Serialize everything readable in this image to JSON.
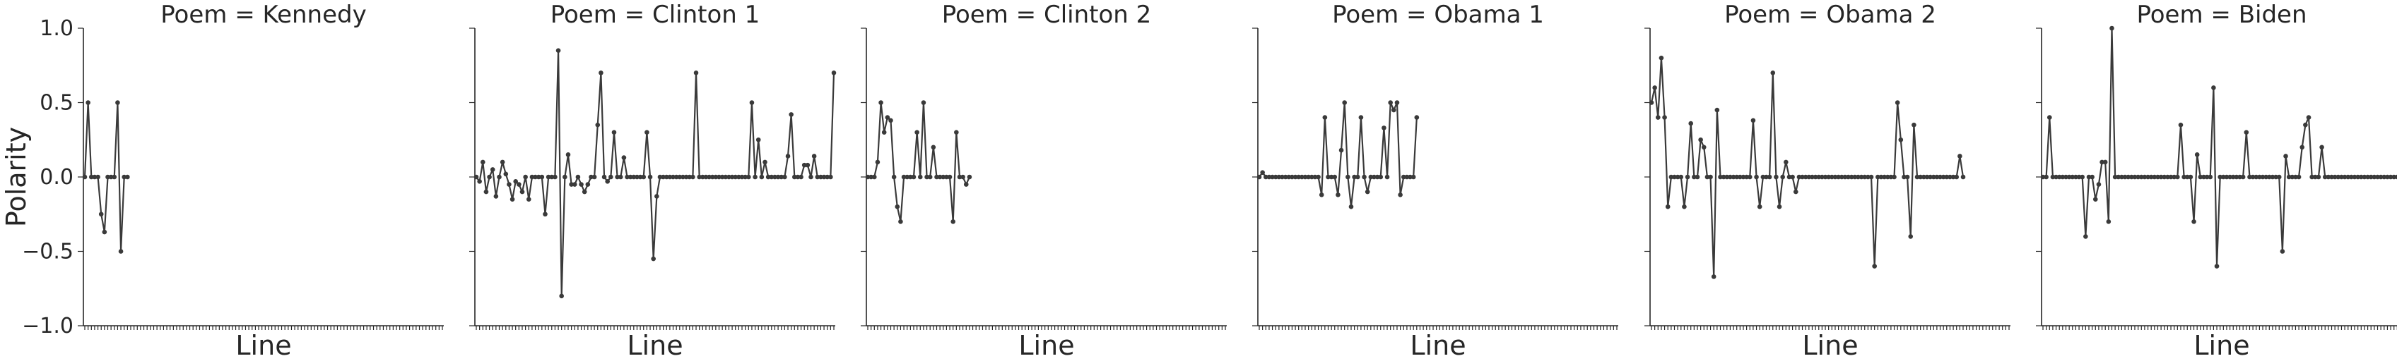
{
  "chart_data": {
    "type": "line",
    "facet_var": "Poem",
    "ylabel": "Polarity",
    "ylim": [
      -1.0,
      1.0
    ],
    "yticks": [
      "1.0",
      "0.5",
      "0.0",
      "−0.5",
      "−1.0"
    ],
    "ytick_values": [
      1.0,
      0.5,
      0.0,
      -0.5,
      -1.0
    ],
    "xlabel": "Line",
    "x_max_lines": 110,
    "grid": false,
    "panels": [
      {
        "title": "Poem = Kennedy",
        "values": [
          0.0,
          0.5,
          0.0,
          0.0,
          0.0,
          -0.25,
          -0.37,
          0.0,
          0.0,
          0.0,
          0.5,
          -0.5,
          0.0,
          0.0
        ]
      },
      {
        "title": "Poem = Clinton 1",
        "values": [
          0.0,
          -0.03,
          0.1,
          -0.1,
          0.0,
          0.05,
          -0.13,
          0.0,
          0.1,
          0.02,
          -0.05,
          -0.15,
          -0.03,
          -0.05,
          -0.1,
          0.0,
          -0.15,
          0.0,
          0.0,
          0.0,
          0.0,
          -0.25,
          0.0,
          0.0,
          0.0,
          0.85,
          -0.8,
          0.0,
          0.15,
          -0.05,
          -0.05,
          0.0,
          -0.05,
          -0.1,
          -0.05,
          0.0,
          0.0,
          0.35,
          0.7,
          0.0,
          -0.03,
          0.0,
          0.3,
          0.0,
          0.0,
          0.13,
          0.0,
          0.0,
          0.0,
          0.0,
          0.0,
          0.0,
          0.3,
          0.0,
          -0.55,
          -0.13,
          0.0,
          0.0,
          0.0,
          0.0,
          0.0,
          0.0,
          0.0,
          0.0,
          0.0,
          0.0,
          0.0,
          0.7,
          0.0,
          0.0,
          0.0,
          0.0,
          0.0,
          0.0,
          0.0,
          0.0,
          0.0,
          0.0,
          0.0,
          0.0,
          0.0,
          0.0,
          0.0,
          0.0,
          0.5,
          0.0,
          0.25,
          0.0,
          0.1,
          0.0,
          0.0,
          0.0,
          0.0,
          0.0,
          0.0,
          0.14,
          0.42,
          0.0,
          0.0,
          0.0,
          0.08,
          0.08,
          0.0,
          0.14,
          0.0,
          0.0,
          0.0,
          0.0,
          0.0,
          0.7
        ]
      },
      {
        "title": "Poem = Clinton 2",
        "values": [
          0.0,
          0.0,
          0.0,
          0.1,
          0.5,
          0.3,
          0.4,
          0.38,
          0.0,
          -0.2,
          -0.3,
          0.0,
          0.0,
          0.0,
          0.0,
          0.3,
          0.0,
          0.5,
          0.0,
          0.0,
          0.2,
          0.0,
          0.0,
          0.0,
          0.0,
          0.0,
          -0.3,
          0.3,
          0.0,
          0.0,
          -0.05,
          0.0
        ]
      },
      {
        "title": "Poem = Obama 1",
        "values": [
          0.0,
          0.03,
          0.0,
          0.0,
          0.0,
          0.0,
          0.0,
          0.0,
          0.0,
          0.0,
          0.0,
          0.0,
          0.0,
          0.0,
          0.0,
          0.0,
          0.0,
          0.0,
          0.0,
          -0.12,
          0.4,
          0.0,
          0.0,
          0.0,
          -0.12,
          0.18,
          0.5,
          0.0,
          -0.2,
          0.0,
          0.0,
          0.4,
          0.0,
          -0.1,
          0.0,
          0.0,
          0.0,
          0.0,
          0.33,
          0.0,
          0.5,
          0.45,
          0.5,
          -0.12,
          0.0,
          0.0,
          0.0,
          0.0,
          0.4
        ]
      },
      {
        "title": "Poem = Obama 2",
        "values": [
          0.5,
          0.6,
          0.4,
          0.8,
          0.4,
          -0.2,
          0.0,
          0.0,
          0.0,
          0.0,
          -0.2,
          0.0,
          0.36,
          0.0,
          0.0,
          0.25,
          0.2,
          0.0,
          0.0,
          -0.67,
          0.45,
          0.0,
          0.0,
          0.0,
          0.0,
          0.0,
          0.0,
          0.0,
          0.0,
          0.0,
          0.0,
          0.38,
          0.0,
          -0.2,
          0.0,
          0.0,
          0.0,
          0.7,
          0.0,
          -0.2,
          0.0,
          0.1,
          0.0,
          0.0,
          -0.1,
          0.0,
          0.0,
          0.0,
          0.0,
          0.0,
          0.0,
          0.0,
          0.0,
          0.0,
          0.0,
          0.0,
          0.0,
          0.0,
          0.0,
          0.0,
          0.0,
          0.0,
          0.0,
          0.0,
          0.0,
          0.0,
          0.0,
          0.0,
          -0.6,
          0.0,
          0.0,
          0.0,
          0.0,
          0.0,
          0.0,
          0.5,
          0.25,
          0.0,
          0.0,
          -0.4,
          0.35,
          0.0,
          0.0,
          0.0,
          0.0,
          0.0,
          0.0,
          0.0,
          0.0,
          0.0,
          0.0,
          0.0,
          0.0,
          0.0,
          0.14,
          0.0
        ]
      },
      {
        "title": "Poem = Biden",
        "values": [
          0.0,
          0.0,
          0.4,
          0.0,
          0.0,
          0.0,
          0.0,
          0.0,
          0.0,
          0.0,
          0.0,
          0.0,
          0.0,
          -0.4,
          0.0,
          0.0,
          -0.15,
          -0.05,
          0.1,
          0.1,
          -0.3,
          1.0,
          0.0,
          0.0,
          0.0,
          0.0,
          0.0,
          0.0,
          0.0,
          0.0,
          0.0,
          0.0,
          0.0,
          0.0,
          0.0,
          0.0,
          0.0,
          0.0,
          0.0,
          0.0,
          0.0,
          0.0,
          0.35,
          0.0,
          0.0,
          0.0,
          -0.3,
          0.15,
          0.0,
          0.0,
          0.0,
          0.0,
          0.6,
          -0.6,
          0.0,
          0.0,
          0.0,
          0.0,
          0.0,
          0.0,
          0.0,
          0.0,
          0.3,
          0.0,
          0.0,
          0.0,
          0.0,
          0.0,
          0.0,
          0.0,
          0.0,
          0.0,
          0.0,
          -0.5,
          0.14,
          0.0,
          0.0,
          0.0,
          0.0,
          0.2,
          0.35,
          0.4,
          0.0,
          0.0,
          0.0,
          0.2,
          0.0,
          0.0,
          0.0,
          0.0,
          0.0,
          0.0,
          0.0,
          0.0,
          0.0,
          0.0,
          0.0,
          0.0,
          0.0,
          0.0,
          0.0,
          0.0,
          0.0,
          0.0,
          0.0,
          0.0,
          0.0,
          0.0,
          0.0
        ]
      }
    ]
  }
}
